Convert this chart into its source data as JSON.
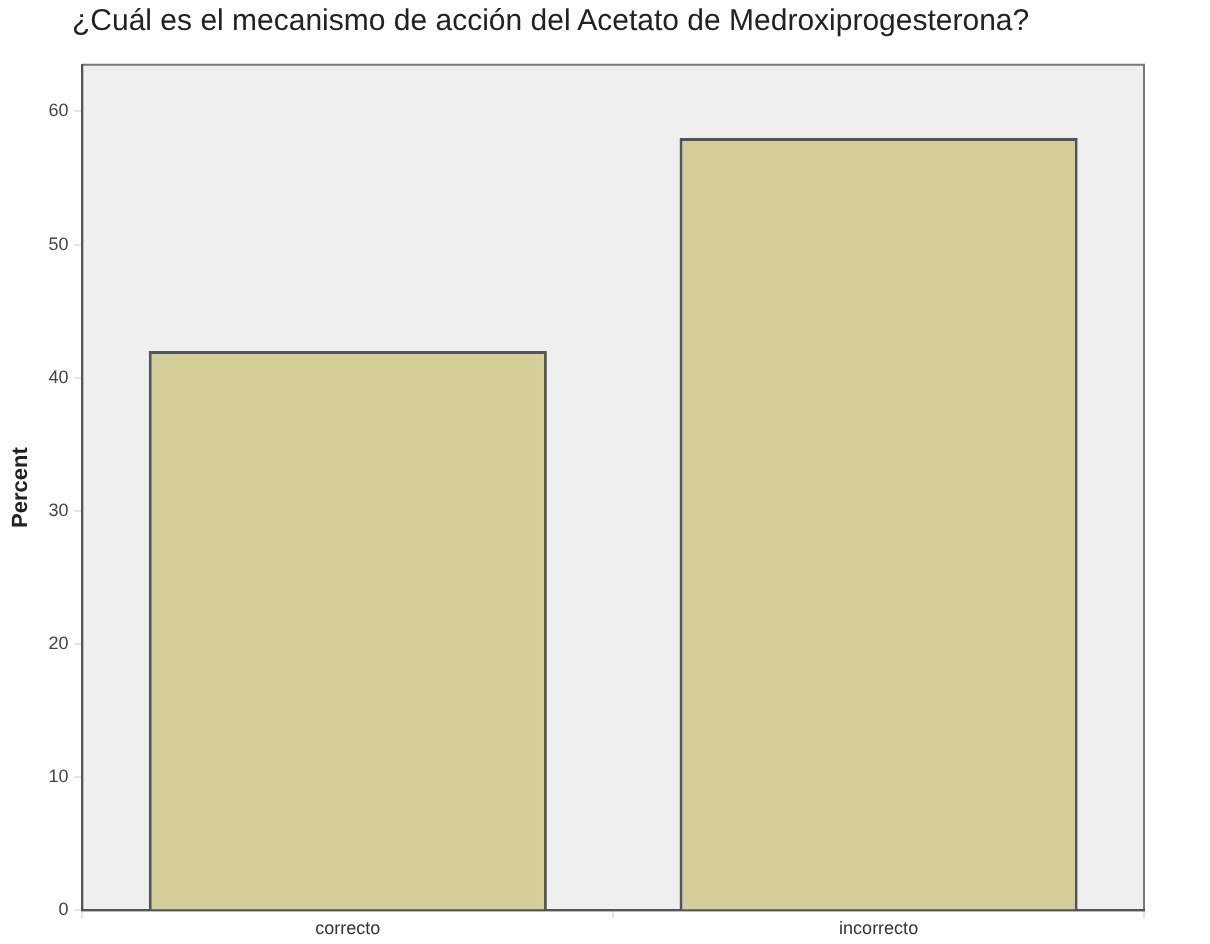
{
  "chart_data": {
    "type": "bar",
    "title": "¿Cuál es el mecanismo de acción del Acetato de Medroxiprogesterona?",
    "ylabel": "Percent",
    "categories": [
      "correcto",
      "incorrecto"
    ],
    "values": [
      42,
      58
    ],
    "color": "#d4cf99",
    "ylim": [
      0,
      63.5
    ],
    "yticks": [
      0,
      10,
      20,
      30,
      40,
      50,
      60
    ],
    "grid": false,
    "legend": false
  }
}
